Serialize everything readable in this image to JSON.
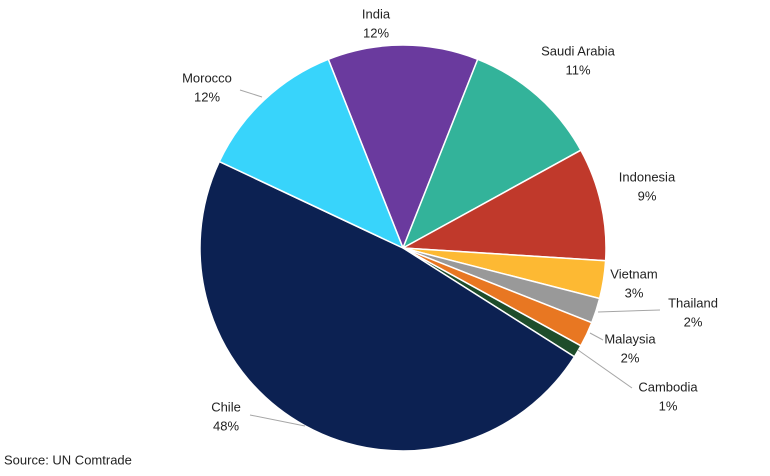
{
  "chart_data": {
    "type": "pie",
    "categories": [
      "India",
      "Saudi Arabia",
      "Indonesia",
      "Vietnam",
      "Thailand",
      "Malaysia",
      "Cambodia",
      "Chile",
      "Morocco"
    ],
    "values": [
      12,
      11,
      9,
      3,
      2,
      2,
      1,
      48,
      12
    ],
    "value_labels": [
      "12%",
      "11%",
      "9%",
      "3%",
      "2%",
      "2%",
      "1%",
      "48%",
      "12%"
    ],
    "colors": [
      "#6a3a9e",
      "#33b39a",
      "#c0392b",
      "#fdb933",
      "#999999",
      "#e87722",
      "#1e4d2b",
      "#0c2152",
      "#38d4fb"
    ],
    "source": "Source: UN Comtrade"
  }
}
